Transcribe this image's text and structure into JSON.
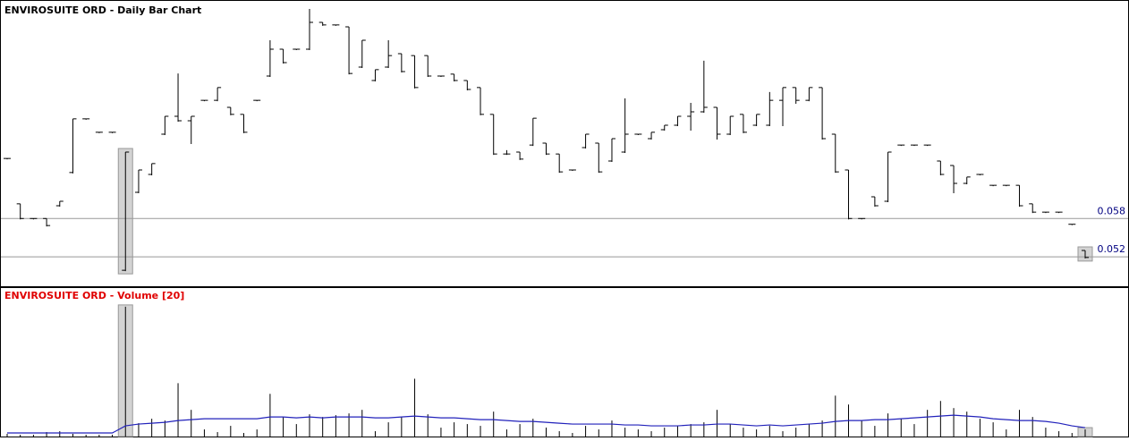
{
  "chart_data": [
    {
      "type": "ohlc",
      "title": "ENVIROSUITE ORD - Daily Bar Chart",
      "color": "#000000",
      "open": [
        0.0674,
        0.0603,
        0.058,
        0.058,
        0.06,
        0.0652,
        0.0736,
        0.0715,
        0.0715,
        0.0499,
        0.0621,
        0.0649,
        0.0712,
        0.074,
        0.0733,
        0.0765,
        0.0765,
        0.0754,
        0.0743,
        0.0765,
        0.0803,
        0.0845,
        0.0845,
        0.0845,
        0.0887,
        0.0883,
        0.088,
        0.0817,
        0.0796,
        0.0817,
        0.0838,
        0.0835,
        0.0835,
        0.0803,
        0.0806,
        0.0796,
        0.0785,
        0.0743,
        0.0681,
        0.0684,
        0.0695,
        0.0698,
        0.0681,
        0.0656,
        0.0691,
        0.0698,
        0.067,
        0.0684,
        0.0712,
        0.0705,
        0.0719,
        0.0726,
        0.074,
        0.0747,
        0.0754,
        0.0712,
        0.0743,
        0.0726,
        0.0726,
        0.0765,
        0.0785,
        0.0765,
        0.0785,
        0.0712,
        0.0656,
        0.058,
        0.0614,
        0.0607,
        0.0695,
        0.0695,
        0.0695,
        0.067,
        0.0663,
        0.0635,
        0.0649,
        0.0632,
        0.0632,
        0.0632,
        0.0603,
        0.059,
        0.059,
        0.0571,
        0.053
      ],
      "high": [
        0.0674,
        0.0603,
        0.058,
        0.058,
        0.0607,
        0.0736,
        0.0736,
        0.0715,
        0.0715,
        0.0684,
        0.0656,
        0.0666,
        0.074,
        0.0807,
        0.074,
        0.0765,
        0.0785,
        0.0754,
        0.0743,
        0.0765,
        0.0859,
        0.0845,
        0.0845,
        0.0908,
        0.0887,
        0.0883,
        0.088,
        0.0859,
        0.0813,
        0.0859,
        0.0838,
        0.0835,
        0.0835,
        0.0803,
        0.0806,
        0.0796,
        0.0785,
        0.0743,
        0.0687,
        0.0684,
        0.0737,
        0.0698,
        0.0681,
        0.0656,
        0.0712,
        0.0698,
        0.0705,
        0.0768,
        0.0712,
        0.0715,
        0.0726,
        0.074,
        0.0761,
        0.0827,
        0.0754,
        0.074,
        0.0743,
        0.0743,
        0.0778,
        0.0785,
        0.0785,
        0.0785,
        0.0785,
        0.0712,
        0.0656,
        0.058,
        0.0614,
        0.0684,
        0.0695,
        0.0695,
        0.0695,
        0.067,
        0.0663,
        0.0645,
        0.0649,
        0.0632,
        0.0632,
        0.0632,
        0.0603,
        0.059,
        0.059,
        0.0571,
        0.053
      ],
      "low": [
        0.0674,
        0.058,
        0.058,
        0.0569,
        0.06,
        0.0652,
        0.0736,
        0.0715,
        0.0715,
        0.0499,
        0.0621,
        0.0649,
        0.0712,
        0.0733,
        0.0698,
        0.0765,
        0.0765,
        0.0743,
        0.0715,
        0.0765,
        0.0803,
        0.0824,
        0.0845,
        0.0845,
        0.0883,
        0.0883,
        0.0807,
        0.0817,
        0.0796,
        0.0817,
        0.081,
        0.0785,
        0.0803,
        0.0803,
        0.0796,
        0.0782,
        0.0743,
        0.0681,
        0.0681,
        0.0673,
        0.0695,
        0.0681,
        0.0653,
        0.0656,
        0.0691,
        0.0653,
        0.067,
        0.0684,
        0.0712,
        0.0705,
        0.0719,
        0.0726,
        0.0719,
        0.0747,
        0.0705,
        0.0712,
        0.0715,
        0.0726,
        0.0726,
        0.0726,
        0.0761,
        0.0765,
        0.0705,
        0.0653,
        0.058,
        0.058,
        0.06,
        0.0607,
        0.0695,
        0.0695,
        0.0695,
        0.0649,
        0.0621,
        0.0635,
        0.0649,
        0.0632,
        0.0632,
        0.06,
        0.059,
        0.059,
        0.059,
        0.0571,
        0.0519
      ],
      "close": [
        0.0674,
        0.058,
        0.058,
        0.0569,
        0.0607,
        0.0736,
        0.0736,
        0.0715,
        0.0715,
        0.0684,
        0.0656,
        0.0666,
        0.074,
        0.0733,
        0.074,
        0.0765,
        0.0785,
        0.0743,
        0.0715,
        0.0765,
        0.0845,
        0.0824,
        0.0845,
        0.0887,
        0.0883,
        0.0883,
        0.0807,
        0.0859,
        0.0813,
        0.0835,
        0.081,
        0.0785,
        0.0803,
        0.0803,
        0.0796,
        0.0782,
        0.0743,
        0.0681,
        0.0681,
        0.0673,
        0.0737,
        0.0681,
        0.0653,
        0.0656,
        0.0712,
        0.0653,
        0.0705,
        0.0712,
        0.0712,
        0.0715,
        0.0726,
        0.074,
        0.0747,
        0.0754,
        0.0712,
        0.074,
        0.0715,
        0.0743,
        0.0765,
        0.0785,
        0.0765,
        0.0785,
        0.0705,
        0.0653,
        0.058,
        0.058,
        0.06,
        0.0684,
        0.0695,
        0.0695,
        0.0695,
        0.0649,
        0.0635,
        0.0645,
        0.0649,
        0.0632,
        0.0632,
        0.06,
        0.059,
        0.059,
        0.059,
        0.0571,
        0.0519
      ],
      "ylim": [
        0.0474,
        0.0922
      ],
      "yticks": [
        0.058,
        0.052
      ]
    },
    {
      "type": "volume",
      "title": "ENVIROSUITE ORD - Volume [20]",
      "color": "#000000",
      "line_color": "#2222bb",
      "values": [
        3,
        2,
        2,
        5,
        6,
        3,
        2,
        2,
        2,
        146,
        15,
        20,
        18,
        60,
        30,
        8,
        5,
        12,
        4,
        8,
        48,
        22,
        14,
        25,
        22,
        24,
        26,
        30,
        6,
        16,
        22,
        65,
        25,
        10,
        16,
        14,
        12,
        28,
        8,
        14,
        20,
        10,
        6,
        4,
        12,
        8,
        18,
        10,
        8,
        6,
        10,
        12,
        14,
        16,
        30,
        14,
        10,
        8,
        12,
        6,
        10,
        14,
        18,
        46,
        36,
        18,
        12,
        26,
        20,
        14,
        30,
        40,
        32,
        28,
        20,
        16,
        8,
        30,
        22,
        10,
        6,
        4,
        8
      ],
      "line_values": [
        4,
        4,
        4,
        4,
        4,
        4,
        4,
        4,
        4,
        12,
        14,
        15,
        16,
        18,
        19,
        20,
        20,
        20,
        20,
        20,
        22,
        22,
        21,
        22,
        21,
        22,
        22,
        22,
        21,
        21,
        22,
        23,
        22,
        21,
        21,
        20,
        19,
        19,
        18,
        17,
        17,
        16,
        15,
        14,
        14,
        14,
        14,
        13,
        13,
        12,
        12,
        12,
        13,
        13,
        14,
        14,
        13,
        12,
        13,
        12,
        13,
        14,
        15,
        17,
        18,
        18,
        19,
        19,
        20,
        21,
        22,
        23,
        24,
        23,
        22,
        20,
        19,
        18,
        18,
        17,
        15,
        12,
        10
      ],
      "ylim": [
        0,
        167
      ]
    }
  ]
}
